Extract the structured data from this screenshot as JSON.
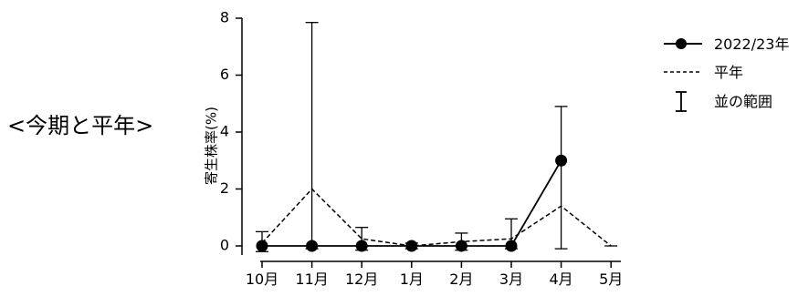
{
  "side_label": "<今期と平年>",
  "chart_data": {
    "type": "line",
    "categories": [
      "10月",
      "11月",
      "12月",
      "1月",
      "2月",
      "3月",
      "4月",
      "5月"
    ],
    "ylabel": "寄生株率(%)",
    "ylim": [
      0,
      8
    ],
    "yticks": [
      0,
      2,
      4,
      6,
      8
    ],
    "grid": false,
    "legend_position": "right",
    "series": [
      {
        "name": "2022/23年",
        "style": "solid-marker",
        "color": "#000000",
        "values": [
          0,
          0,
          0,
          0,
          0,
          0,
          3.0,
          null
        ]
      },
      {
        "name": "平年",
        "style": "dashed",
        "color": "#000000",
        "values": [
          0.1,
          2.0,
          0.25,
          0.0,
          0.15,
          0.25,
          1.4,
          0.0
        ]
      }
    ],
    "range": {
      "name": "並の範囲",
      "low": [
        -0.2,
        -0.1,
        -0.15,
        -0.1,
        -0.15,
        -0.1,
        -0.1,
        0.0
      ],
      "high": [
        0.5,
        7.85,
        0.65,
        0.1,
        0.45,
        0.95,
        4.9,
        0.0
      ]
    }
  }
}
